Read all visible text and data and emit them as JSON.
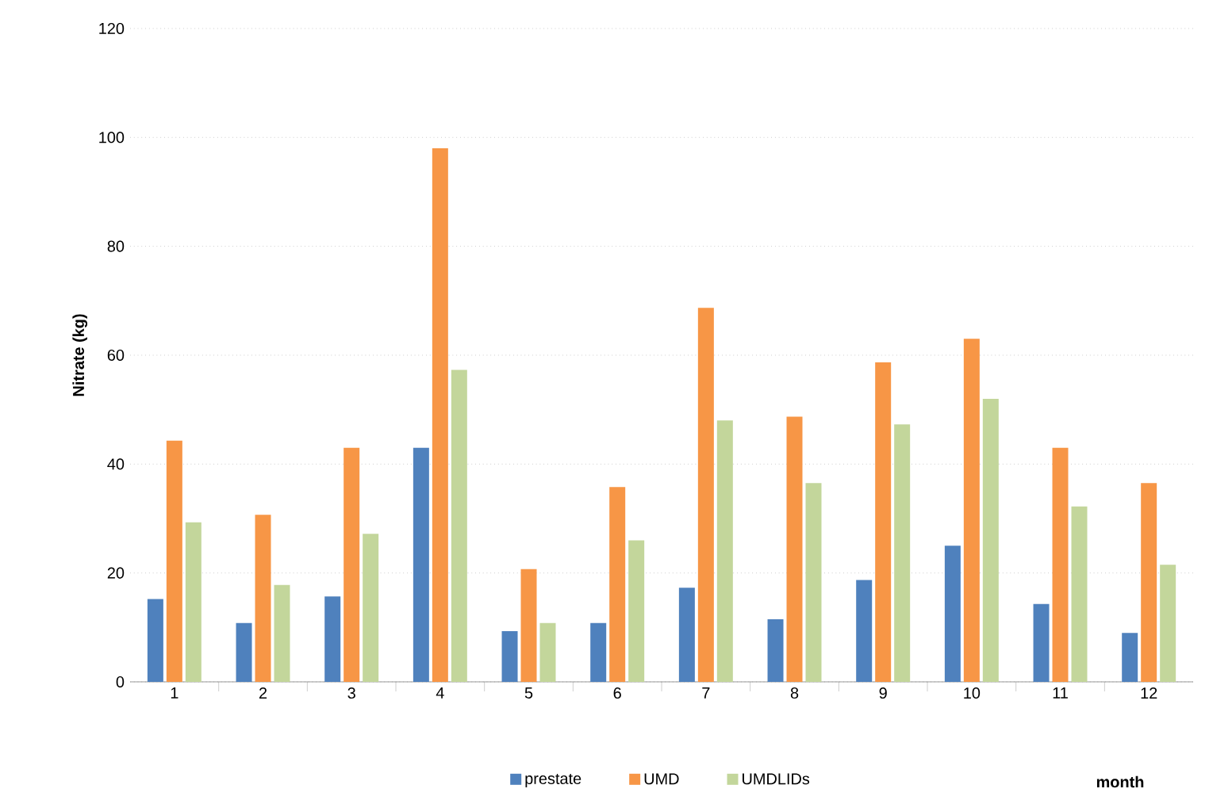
{
  "chart_data": {
    "type": "bar",
    "xlabel": "month",
    "ylabel": "Nitrate (kg)",
    "categories": [
      "1",
      "2",
      "3",
      "4",
      "5",
      "6",
      "7",
      "8",
      "9",
      "10",
      "11",
      "12"
    ],
    "series": [
      {
        "name": "prestate",
        "color": "#4f81bd",
        "values": [
          15.2,
          10.8,
          15.7,
          43,
          9.3,
          10.8,
          17.3,
          11.5,
          18.7,
          25,
          14.3,
          9
        ]
      },
      {
        "name": "UMD",
        "color": "#f79646",
        "values": [
          44.3,
          30.7,
          43,
          98,
          20.7,
          35.8,
          68.7,
          48.7,
          58.7,
          63,
          43,
          36.5
        ]
      },
      {
        "name": "UMDLIDs",
        "color": "#c3d69b",
        "values": [
          29.3,
          17.8,
          27.2,
          57.3,
          10.8,
          26,
          48,
          36.5,
          47.3,
          52,
          32.2,
          21.5
        ]
      }
    ],
    "ylim": [
      0,
      120
    ],
    "yticks": [
      0,
      20,
      40,
      60,
      80,
      100,
      120
    ],
    "grid": "y",
    "legend": "bottom"
  }
}
